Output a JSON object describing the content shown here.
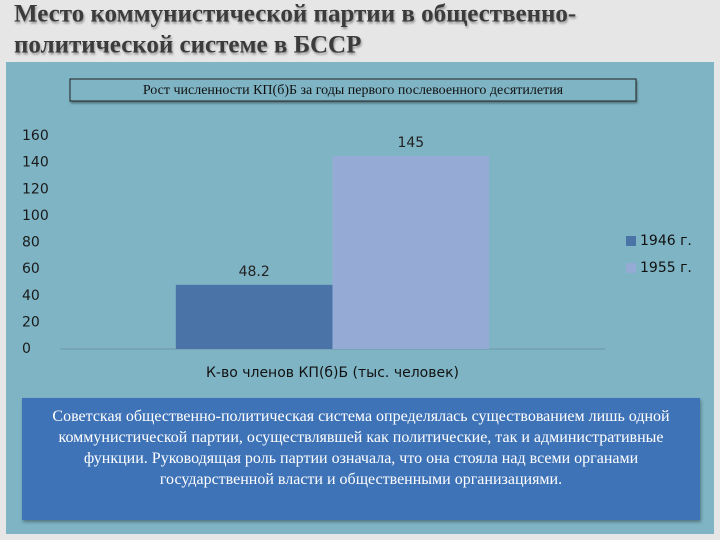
{
  "slide": {
    "title_lines": [
      "Место коммунистической партии в общественно-",
      "политической системе в БССР"
    ],
    "body_text": "Советская общественно-политическая система определялась существованием лишь одной коммунистической партии, осуществлявшей как политические, так и административные функции. Руководящая роль партии означала, что она стояла над всеми органами государственной власти и общественными организациями."
  },
  "chart_data": {
    "type": "bar",
    "title": "Рост численности КП(б)Б за годы первого послевоенного десятилетия",
    "categories": [
      "К-во членов КП(б)Б (тыс. человек)"
    ],
    "series": [
      {
        "name": "1946 г.",
        "color": "#4a74a8",
        "values": [
          48.2
        ]
      },
      {
        "name": "1955 г.",
        "color": "#95abd6",
        "values": [
          145
        ]
      }
    ],
    "ylim": [
      0,
      160
    ],
    "yticks": [
      0,
      20,
      40,
      60,
      80,
      100,
      120,
      140,
      160
    ],
    "legend": "right",
    "data_labels": true
  }
}
